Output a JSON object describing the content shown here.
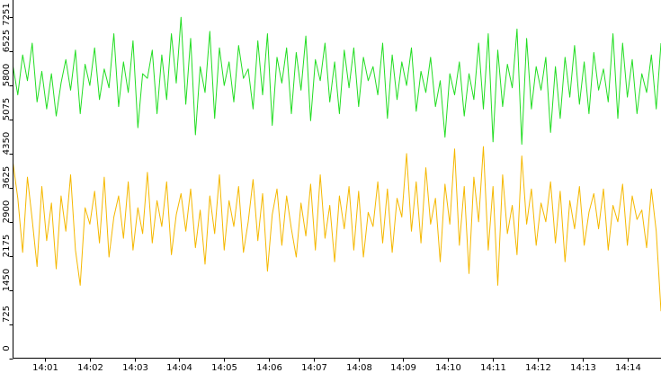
{
  "chart_data": {
    "type": "line",
    "title": "",
    "xlabel": "",
    "ylabel": "",
    "ylim": [
      0,
      7617
    ],
    "y_ticks": [
      0,
      725,
      1450,
      2175,
      2900,
      3625,
      4350,
      5075,
      5800,
      6525,
      7251
    ],
    "x_ticks": [
      {
        "label": "14:01",
        "minute": 1
      },
      {
        "label": "14:02",
        "minute": 2
      },
      {
        "label": "14:03",
        "minute": 3
      },
      {
        "label": "14:04",
        "minute": 4
      },
      {
        "label": "14:05",
        "minute": 5
      },
      {
        "label": "14:06",
        "minute": 6
      },
      {
        "label": "14:07",
        "minute": 7
      },
      {
        "label": "14:08",
        "minute": 8
      },
      {
        "label": "14:09",
        "minute": 9
      },
      {
        "label": "14:10",
        "minute": 10
      },
      {
        "label": "14:11",
        "minute": 11
      },
      {
        "label": "14:12",
        "minute": 12
      },
      {
        "label": "14:13",
        "minute": 13
      },
      {
        "label": "14:14",
        "minute": 14
      }
    ],
    "x_range_minutes": [
      0.29,
      14.75
    ],
    "grid": false,
    "legend": "none",
    "series": [
      {
        "color": "#22dd22",
        "x_start_minute": 0.29,
        "x_end_minute": 14.75,
        "values": [
          6200,
          5600,
          6450,
          5900,
          6700,
          5450,
          6100,
          5300,
          6050,
          5150,
          5850,
          6350,
          5700,
          6550,
          5200,
          6250,
          5800,
          6600,
          5500,
          6150,
          5750,
          6900,
          5350,
          6300,
          5650,
          6750,
          4900,
          6050,
          5950,
          6550,
          5200,
          6450,
          5500,
          6900,
          5850,
          7250,
          5400,
          6800,
          4750,
          6200,
          5650,
          6950,
          5100,
          6600,
          5800,
          6300,
          5450,
          6650,
          5950,
          6150,
          5300,
          6750,
          5600,
          6900,
          4950,
          6400,
          5850,
          6600,
          5200,
          6500,
          5700,
          6850,
          5050,
          6350,
          5900,
          6700,
          5450,
          6300,
          5200,
          6550,
          5750,
          6600,
          5350,
          6400,
          5900,
          6200,
          5600,
          6700,
          5100,
          6450,
          5500,
          6300,
          5800,
          6600,
          5250,
          6100,
          5650,
          6400,
          5350,
          5900,
          4700,
          6050,
          5600,
          6300,
          5150,
          6050,
          5500,
          6700,
          5300,
          6900,
          4600,
          6550,
          5350,
          6250,
          5750,
          7000,
          4550,
          6800,
          5300,
          6200,
          5700,
          6400,
          4800,
          6200,
          5100,
          6400,
          5550,
          6650,
          5400,
          6300,
          5200,
          6500,
          5700,
          6150,
          5450,
          6900,
          5100,
          6700,
          5550,
          6350,
          5200,
          6050,
          5650,
          6450,
          5300,
          6700
        ]
      },
      {
        "color": "#f5b800",
        "x_start_minute": 0.29,
        "x_end_minute": 14.75,
        "values": [
          4150,
          3400,
          2250,
          3850,
          2950,
          1950,
          3650,
          2500,
          3300,
          1900,
          3450,
          2700,
          3900,
          2300,
          1550,
          3200,
          2850,
          3550,
          2450,
          3850,
          2150,
          3000,
          3450,
          2550,
          3750,
          2300,
          3200,
          2650,
          3950,
          2450,
          3350,
          2800,
          3750,
          2200,
          3050,
          3500,
          2700,
          3600,
          2350,
          3150,
          2000,
          3450,
          2650,
          3900,
          2300,
          3350,
          2800,
          3650,
          2250,
          2900,
          3800,
          2500,
          3500,
          1850,
          3050,
          3600,
          2400,
          3450,
          2750,
          2150,
          3300,
          2600,
          3700,
          2300,
          3900,
          2550,
          3250,
          2050,
          3450,
          2750,
          3650,
          2300,
          3550,
          2150,
          3100,
          2800,
          3750,
          2450,
          3600,
          2250,
          3400,
          3000,
          4350,
          2700,
          3750,
          2450,
          4050,
          2850,
          3400,
          2050,
          3700,
          2850,
          4450,
          2400,
          3650,
          1800,
          3850,
          2900,
          4500,
          2300,
          3650,
          1550,
          3900,
          2650,
          3250,
          2200,
          4300,
          2850,
          3600,
          2400,
          3300,
          2900,
          3750,
          2450,
          3550,
          2050,
          3350,
          2750,
          3650,
          2400,
          3100,
          3500,
          2750,
          3600,
          2300,
          3250,
          2900,
          3700,
          2400,
          3450,
          2950,
          3150,
          2350,
          3600,
          2700,
          1000
        ]
      }
    ]
  }
}
